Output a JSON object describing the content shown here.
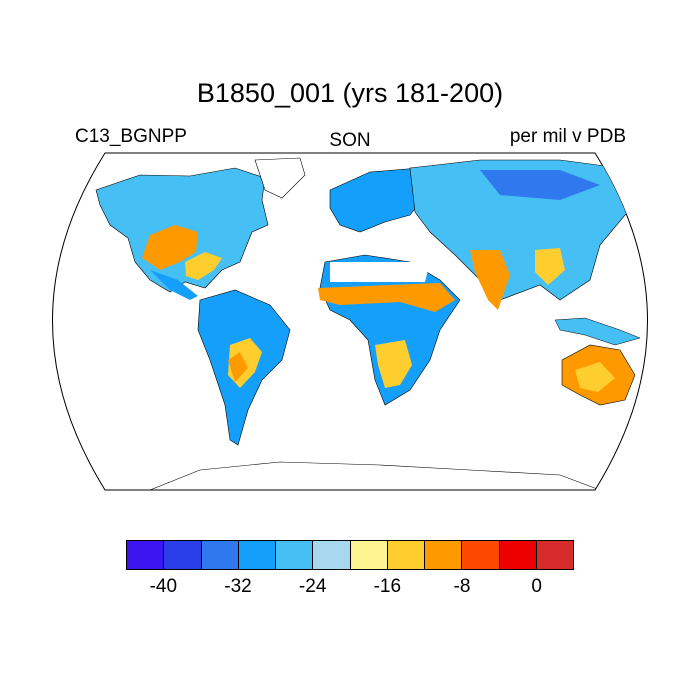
{
  "title": "B1850_001 (yrs 181-200)",
  "left_label": "C13_BGNPP",
  "center_label": "SON",
  "right_label": "per mil v PDB",
  "colorbar": {
    "colors": [
      "#3c14f0",
      "#2a3ee8",
      "#2f78ee",
      "#14a0fa",
      "#46bff5",
      "#a8d8f0",
      "#fef592",
      "#fecd2e",
      "#fe9a00",
      "#fc4800",
      "#ec0000",
      "#d62c2c"
    ],
    "tick_labels": [
      "-40",
      "-32",
      "-24",
      "-16",
      "-8",
      "0"
    ]
  }
}
